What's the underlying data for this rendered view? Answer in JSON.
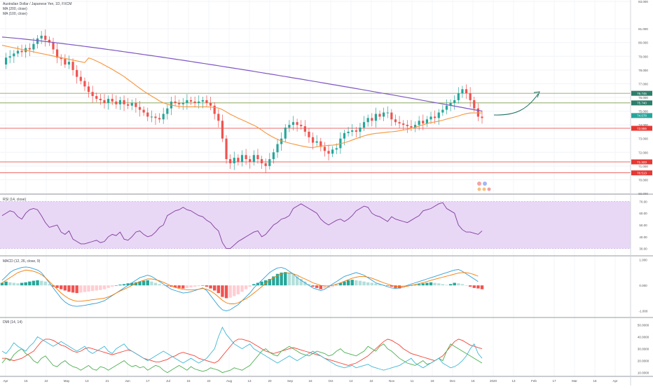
{
  "header": {
    "symbol_line": "Australian Dollar / Japanese Yen, 1D, FXCM",
    "ma1_label": "MA (200, close)",
    "ma2_label": "MA (100, close)"
  },
  "panes": {
    "rsi_label": "RSI (14, close)",
    "macd_label": "MACD (12, 26, close, 9)",
    "dmi_label": "DMI (14, 14)"
  },
  "colors": {
    "up": "#26a69a",
    "down": "#ef5350",
    "ma200": "#7e57c2",
    "ma100": "#f7953b",
    "rsi_band": "#e9d7f6",
    "green_level": "#7a9a4a",
    "red_level": "#e53935",
    "arrow": "#1b6e5f"
  },
  "chart_data": {
    "type": "line",
    "price": {
      "yaxis_ticks": [
        "83.000",
        "81.000",
        "80.000",
        "79.000",
        "78.000",
        "77.000",
        "76.000",
        "75.000",
        "74.000",
        "73.000",
        "72.000",
        "71.000",
        "70.000",
        "69.000"
      ],
      "ylim": [
        69,
        83
      ],
      "closes": [
        78.4,
        78.9,
        79.0,
        79.2,
        79.4,
        79.3,
        79.6,
        79.5,
        79.9,
        80.3,
        80.5,
        80.2,
        80.0,
        79.5,
        78.9,
        78.8,
        78.4,
        78.6,
        78.0,
        77.5,
        77.2,
        76.8,
        76.4,
        76.1,
        75.9,
        75.8,
        75.6,
        75.9,
        75.7,
        75.5,
        75.8,
        75.5,
        75.4,
        75.6,
        75.3,
        75.1,
        74.9,
        74.6,
        74.6,
        74.5,
        74.4,
        74.8,
        75.2,
        75.7,
        75.6,
        75.5,
        75.6,
        75.8,
        75.7,
        75.6,
        75.7,
        75.8,
        75.6,
        75.4,
        74.8,
        74.3,
        73.0,
        71.5,
        71.2,
        71.6,
        71.3,
        71.8,
        71.5,
        71.3,
        71.8,
        71.5,
        71.2,
        71.0,
        71.5,
        72.0,
        72.6,
        73.0,
        73.8,
        74.0,
        74.2,
        74.0,
        73.9,
        73.5,
        73.1,
        72.7,
        72.8,
        72.4,
        72.1,
        71.9,
        72.2,
        72.3,
        73.0,
        73.4,
        73.5,
        73.6,
        73.5,
        73.8,
        74.2,
        74.5,
        74.3,
        74.8,
        74.6,
        74.9,
        74.9,
        74.4,
        74.2,
        74.1,
        74.0,
        73.9,
        73.8,
        74.0,
        74.3,
        74.1,
        74.4,
        74.6,
        74.5,
        74.9,
        75.1,
        75.4,
        75.6,
        75.8,
        76.3,
        76.6,
        76.3,
        75.8,
        75.2,
        74.6,
        74.5
      ],
      "ma200_ends": [
        80.4,
        75.0
      ],
      "levels_green": [
        76.3,
        75.6
      ],
      "levels_red": [
        73.75,
        71.3,
        70.5
      ],
      "label_values": [
        "76.745",
        "75.740",
        "74.678",
        "73.555",
        "71.323",
        "70.513"
      ]
    },
    "xaxis_ticks": [
      "Apr",
      "15",
      "22",
      "May",
      "13",
      "21",
      "Jun",
      "17",
      "Jul",
      "15",
      "22",
      "Aug",
      "13",
      "20",
      "Sep",
      "16",
      "Oct",
      "14",
      "22",
      "Nov",
      "11",
      "18",
      "Dec",
      "16",
      "2020",
      "13",
      "Feb",
      "17",
      "Mar",
      "16",
      "Apr",
      "13"
    ],
    "rsi": {
      "ticks": [
        "70.00",
        "60.00",
        "50.00",
        "40.00",
        "30.00"
      ],
      "ylim": [
        25,
        75
      ],
      "band": [
        30,
        70
      ],
      "values": [
        58,
        60,
        62,
        61,
        57,
        55,
        60,
        63,
        64,
        63,
        58,
        52,
        48,
        49,
        50,
        44,
        42,
        45,
        38,
        36,
        34,
        34,
        35,
        36,
        37,
        35,
        36,
        40,
        42,
        41,
        44,
        38,
        37,
        40,
        44,
        45,
        42,
        40,
        41,
        44,
        48,
        50,
        58,
        60,
        62,
        63,
        65,
        63,
        62,
        60,
        58,
        57,
        54,
        52,
        48,
        45,
        35,
        30,
        30,
        33,
        36,
        38,
        40,
        42,
        44,
        45,
        40,
        42,
        46,
        50,
        52,
        55,
        56,
        58,
        64,
        66,
        68,
        66,
        64,
        62,
        60,
        55,
        52,
        50,
        52,
        54,
        55,
        53,
        55,
        58,
        62,
        64,
        66,
        65,
        60,
        58,
        57,
        55,
        53,
        57,
        55,
        54,
        53,
        52,
        54,
        56,
        58,
        62,
        63,
        64,
        66,
        68,
        69,
        64,
        62,
        60,
        50,
        46,
        44,
        44,
        43,
        42,
        45
      ]
    },
    "macd": {
      "ticks": [
        "1.000",
        "0.000",
        "-1.000"
      ],
      "ylim": [
        -1.2,
        1.1
      ],
      "histogram": [
        0.1,
        0.15,
        0.12,
        0.1,
        0.08,
        0.1,
        0.12,
        0.15,
        0.18,
        0.2,
        0.18,
        0.15,
        0.05,
        -0.05,
        -0.1,
        -0.15,
        -0.2,
        -0.25,
        -0.28,
        -0.3,
        -0.28,
        -0.26,
        -0.24,
        -0.22,
        -0.2,
        -0.18,
        -0.15,
        -0.1,
        -0.05,
        0,
        0.03,
        0.05,
        0.08,
        0.1,
        0.12,
        0.15,
        0.18,
        0.2,
        0.15,
        0.1,
        0.05,
        0,
        -0.03,
        -0.05,
        -0.08,
        -0.1,
        -0.12,
        -0.1,
        -0.08,
        -0.05,
        -0.03,
        0,
        -0.05,
        -0.12,
        -0.2,
        -0.3,
        -0.45,
        -0.5,
        -0.48,
        -0.42,
        -0.35,
        -0.25,
        -0.15,
        -0.05,
        0.05,
        0.1,
        0.15,
        0.2,
        0.25,
        0.35,
        0.45,
        0.5,
        0.52,
        0.5,
        0.45,
        0.35,
        0.25,
        0.15,
        0.05,
        -0.05,
        -0.1,
        -0.15,
        -0.12,
        -0.1,
        -0.05,
        0.02,
        0.1,
        0.15,
        0.2,
        0.22,
        0.2,
        0.18,
        0.15,
        0.12,
        0.1,
        0.08,
        0.05,
        0.02,
        -0.02,
        -0.05,
        -0.1,
        -0.12,
        -0.1,
        -0.05,
        0,
        0.02,
        0.05,
        0.08,
        0.1,
        0.12,
        0.1,
        0.08,
        0.05,
        0.02,
        0.05,
        0.1,
        0.08,
        0.05,
        0,
        -0.05,
        -0.1,
        -0.12,
        -0.15
      ],
      "macd_line": [
        0.2,
        0.35,
        0.5,
        0.6,
        0.65,
        0.7,
        0.72,
        0.7,
        0.65,
        0.6,
        0.5,
        0.3,
        0.1,
        -0.1,
        -0.3,
        -0.5,
        -0.65,
        -0.75,
        -0.8,
        -0.82,
        -0.8,
        -0.78,
        -0.75,
        -0.72,
        -0.7,
        -0.65,
        -0.6,
        -0.5,
        -0.4,
        -0.3,
        -0.2,
        -0.1,
        0,
        0.1,
        0.2,
        0.3,
        0.35,
        0.4,
        0.35,
        0.25,
        0.15,
        0.05,
        -0.05,
        -0.15,
        -0.2,
        -0.25,
        -0.3,
        -0.28,
        -0.25,
        -0.2,
        -0.15,
        -0.1,
        -0.2,
        -0.4,
        -0.6,
        -0.8,
        -0.95,
        -1.0,
        -0.95,
        -0.85,
        -0.75,
        -0.6,
        -0.45,
        -0.3,
        -0.1,
        0.05,
        0.2,
        0.35,
        0.5,
        0.6,
        0.68,
        0.7,
        0.65,
        0.55,
        0.45,
        0.3,
        0.2,
        0.1,
        0,
        -0.1,
        -0.15,
        -0.2,
        -0.15,
        -0.05,
        0.05,
        0.15,
        0.25,
        0.35,
        0.4,
        0.45,
        0.5,
        0.45,
        0.4,
        0.3,
        0.2,
        0.1,
        0.05,
        0,
        -0.05,
        -0.1,
        -0.12,
        -0.1,
        -0.05,
        0,
        0.05,
        0.1,
        0.15,
        0.2,
        0.25,
        0.3,
        0.35,
        0.4,
        0.45,
        0.5,
        0.55,
        0.6,
        0.62,
        0.55,
        0.45,
        0.35,
        0.25,
        0.15
      ],
      "signal_line": [
        0.1,
        0.2,
        0.3,
        0.4,
        0.5,
        0.55,
        0.6,
        0.58,
        0.55,
        0.5,
        0.42,
        0.3,
        0.15,
        0,
        -0.15,
        -0.3,
        -0.42,
        -0.52,
        -0.58,
        -0.62,
        -0.62,
        -0.6,
        -0.58,
        -0.56,
        -0.54,
        -0.52,
        -0.5,
        -0.45,
        -0.38,
        -0.3,
        -0.22,
        -0.15,
        -0.08,
        0,
        0.08,
        0.15,
        0.2,
        0.25,
        0.25,
        0.22,
        0.18,
        0.12,
        0.05,
        -0.02,
        -0.08,
        -0.12,
        -0.15,
        -0.17,
        -0.18,
        -0.17,
        -0.15,
        -0.12,
        -0.15,
        -0.22,
        -0.32,
        -0.45,
        -0.58,
        -0.68,
        -0.72,
        -0.72,
        -0.68,
        -0.6,
        -0.52,
        -0.42,
        -0.3,
        -0.18,
        -0.05,
        0.08,
        0.2,
        0.3,
        0.38,
        0.45,
        0.48,
        0.48,
        0.45,
        0.4,
        0.32,
        0.25,
        0.18,
        0.1,
        0.05,
        0,
        -0.02,
        -0.02,
        0,
        0.05,
        0.1,
        0.16,
        0.22,
        0.28,
        0.32,
        0.35,
        0.35,
        0.32,
        0.28,
        0.22,
        0.16,
        0.1,
        0.05,
        0,
        -0.03,
        -0.05,
        -0.05,
        -0.03,
        0,
        0.03,
        0.07,
        0.11,
        0.15,
        0.2,
        0.24,
        0.28,
        0.32,
        0.36,
        0.4,
        0.44,
        0.48,
        0.5,
        0.5,
        0.47,
        0.42,
        0.36
      ]
    },
    "dmi": {
      "ticks": [
        "50.0000",
        "40.0000",
        "30.0000",
        "20.0000",
        "10.0000"
      ],
      "ylim": [
        8,
        55
      ],
      "plus_di": [
        18,
        22,
        20,
        25,
        28,
        30,
        26,
        24,
        20,
        18,
        22,
        24,
        20,
        16,
        15,
        18,
        20,
        17,
        15,
        14,
        12,
        14,
        16,
        13,
        12,
        15,
        14,
        12,
        14,
        16,
        18,
        20,
        17,
        15,
        16,
        14,
        15,
        12,
        14,
        16,
        15,
        12,
        10,
        12,
        14,
        16,
        14,
        12,
        15,
        13,
        12,
        11,
        12,
        14,
        13,
        12,
        10,
        11,
        12,
        14,
        13,
        12,
        14,
        16,
        20,
        24,
        28,
        30,
        27,
        25,
        24,
        28,
        30,
        32,
        30,
        28,
        26,
        25,
        24,
        26,
        28,
        27,
        26,
        24,
        25,
        28,
        30,
        27,
        26,
        25,
        24,
        26,
        28,
        32,
        30,
        28,
        32,
        34,
        30,
        28,
        25,
        22,
        20,
        18,
        17,
        16,
        18,
        20,
        17,
        18,
        20,
        22,
        20,
        28,
        34,
        32,
        30,
        28,
        26,
        24,
        22,
        20,
        18
      ],
      "minus_di": [
        28,
        26,
        30,
        35,
        32,
        30,
        28,
        32,
        35,
        40,
        38,
        36,
        34,
        32,
        34,
        36,
        34,
        32,
        30,
        28,
        30,
        32,
        28,
        26,
        28,
        30,
        32,
        28,
        26,
        30,
        32,
        34,
        30,
        28,
        26,
        24,
        22,
        20,
        22,
        24,
        26,
        28,
        26,
        24,
        22,
        20,
        18,
        20,
        22,
        20,
        18,
        20,
        22,
        26,
        30,
        40,
        48,
        42,
        38,
        34,
        32,
        30,
        32,
        34,
        30,
        28,
        26,
        24,
        22,
        20,
        18,
        20,
        22,
        24,
        22,
        20,
        22,
        24,
        26,
        28,
        26,
        24,
        22,
        20,
        18,
        16,
        15,
        14,
        15,
        16,
        14,
        15,
        16,
        17,
        15,
        14,
        13,
        12,
        13,
        14,
        15,
        16,
        18,
        20,
        22,
        18,
        16,
        14,
        16,
        18,
        20,
        22,
        18,
        16,
        14,
        15,
        17,
        20,
        24,
        30,
        34,
        26,
        22
      ],
      "adx": [
        22,
        22,
        21,
        20,
        21,
        22,
        24,
        26,
        28,
        32,
        36,
        38,
        38,
        37,
        35,
        33,
        32,
        30,
        28,
        27,
        28,
        30,
        31,
        30,
        29,
        28,
        27,
        26,
        25,
        26,
        27,
        28,
        29,
        28,
        26,
        24,
        22,
        21,
        20,
        19,
        19,
        20,
        21,
        23,
        24,
        26,
        27,
        26,
        25,
        24,
        22,
        21,
        20,
        19,
        18,
        20,
        24,
        28,
        32,
        36,
        38,
        38,
        37,
        36,
        34,
        32,
        30,
        28,
        27,
        26,
        27,
        28,
        29,
        30,
        31,
        30,
        29,
        28,
        27,
        26,
        25,
        24,
        22,
        21,
        20,
        19,
        18,
        17,
        16,
        17,
        18,
        20,
        22,
        24,
        27,
        30,
        33,
        36,
        38,
        37,
        35,
        33,
        30,
        28,
        26,
        25,
        24,
        23,
        22,
        21,
        20,
        22,
        24,
        28,
        32,
        36,
        38,
        37,
        35,
        33,
        32,
        31,
        30
      ]
    }
  }
}
